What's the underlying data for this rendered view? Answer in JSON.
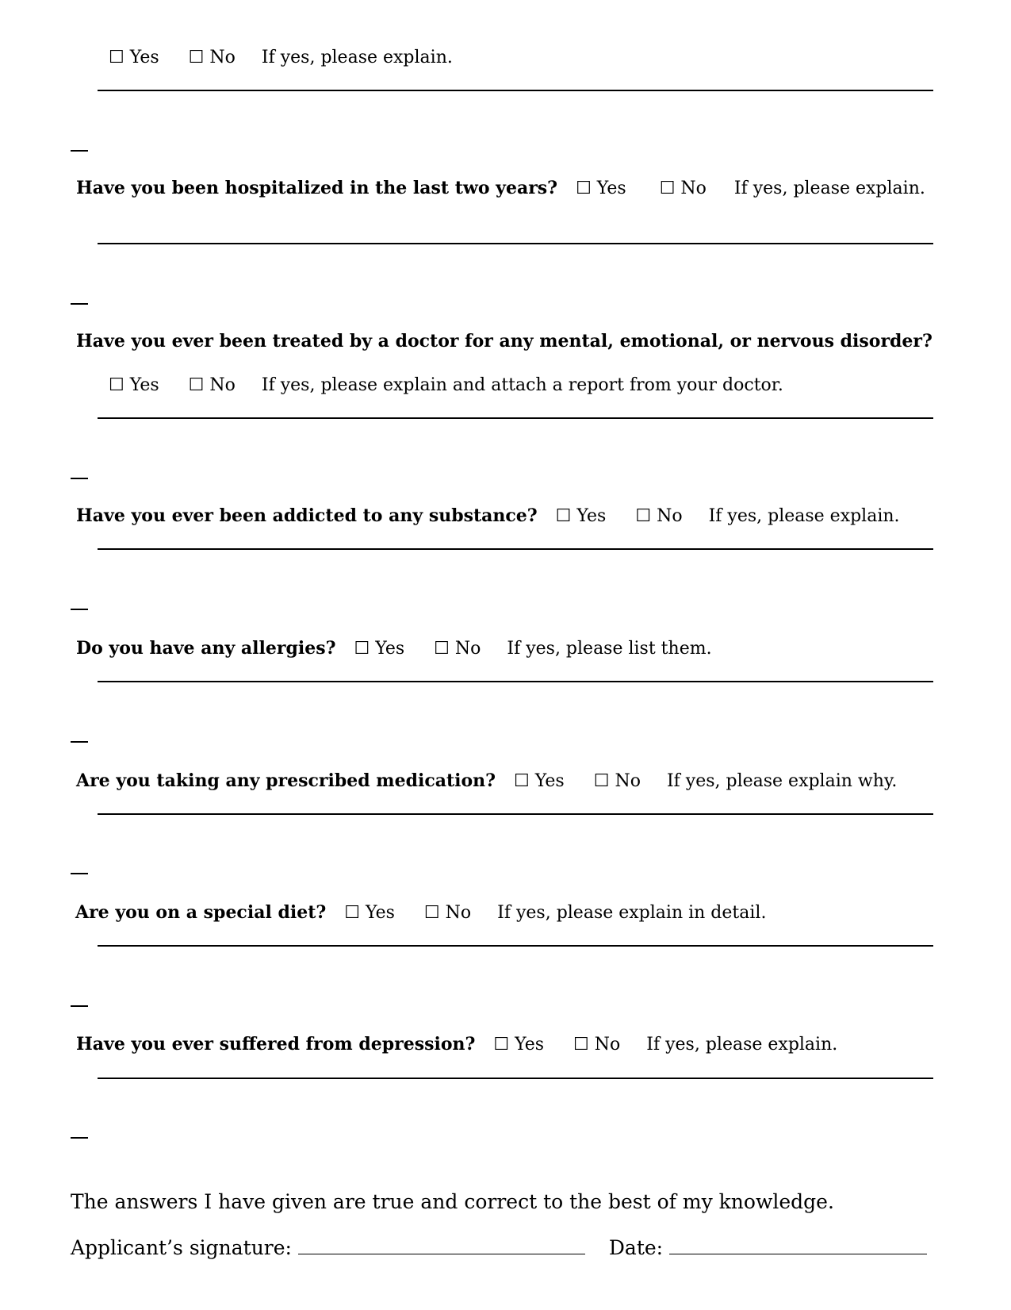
{
  "checkbox_icon": "☐",
  "yes": "Yes",
  "no": "No",
  "top_row": {
    "note": "If yes, please explain."
  },
  "questions": [
    {
      "q": "Have you been hospitalized in the last two years?",
      "note": "If yes, please explain."
    },
    {
      "q": "Have you ever been treated by a doctor for any mental, emotional, or nervous disorder?",
      "note": "If yes, please explain and attach a report from your doctor."
    },
    {
      "q": "Have you ever been addicted to any substance?",
      "note": "If yes, please explain."
    },
    {
      "q": "Do you have any allergies?",
      "note": "If yes, please list them."
    },
    {
      "q": "Are you taking any prescribed medication?",
      "note": "If yes, please explain why."
    },
    {
      "q": "Are you on a special diet?",
      "note": "If yes, please explain in detail."
    },
    {
      "q": "Have you ever suffered from depression?",
      "note": "If yes, please explain."
    }
  ],
  "statement": "The answers I have given are true and correct to the best of my knowledge.",
  "signature_label": "Applicant’s signature:",
  "date_label": "Date:"
}
